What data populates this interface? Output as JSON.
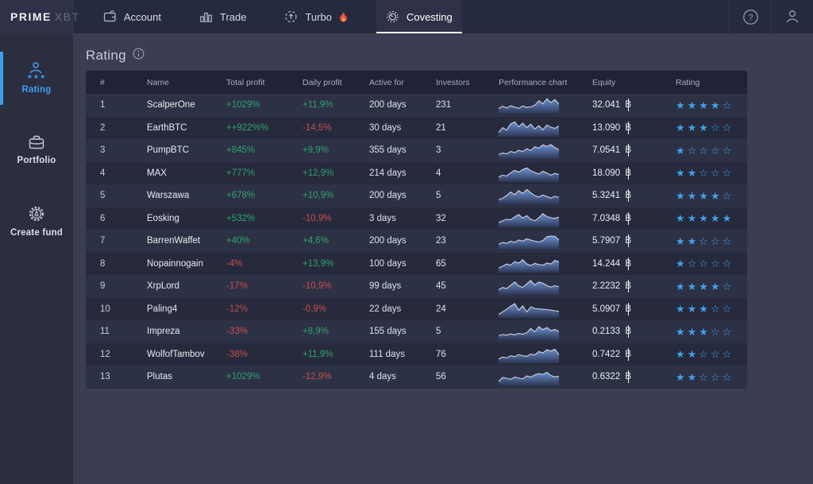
{
  "topbar": {
    "logo": {
      "brand": "PRIME",
      "suffix": "XBT"
    },
    "tabs": [
      {
        "label": "Account",
        "active": false
      },
      {
        "label": "Trade",
        "active": false
      },
      {
        "label": "Turbo",
        "badge": "🔥",
        "active": false
      },
      {
        "label": "Covesting",
        "active": true
      }
    ]
  },
  "sidebar": {
    "items": [
      {
        "label": "Rating",
        "active": true
      },
      {
        "label": "Portfolio",
        "active": false
      },
      {
        "label": "Create fund",
        "active": false
      }
    ]
  },
  "page": {
    "title": "Rating"
  },
  "table": {
    "currency": "฿",
    "rating_max": 5,
    "columns": [
      "#",
      "Name",
      "Total profit",
      "Daily profit",
      "Active for",
      "Investors",
      "Performance chart",
      "Equity",
      "Rating"
    ],
    "rows": [
      {
        "rank": "1",
        "name": "ScalperOne",
        "total_profit": "+1029%",
        "daily_profit": "+11,9%",
        "active_for": "200 days",
        "investors": "231",
        "equity": "32.041",
        "rating": 4,
        "spark": [
          28,
          44,
          32,
          47,
          38,
          30,
          45,
          36,
          40,
          50,
          80,
          60,
          93,
          68,
          88,
          58
        ]
      },
      {
        "rank": "2",
        "name": "EarthBTC",
        "total_profit": "++922%%",
        "daily_profit": "-14,5%",
        "active_for": "30 days",
        "investors": "21",
        "equity": "13.090",
        "rating": 3,
        "spark": [
          22,
          55,
          38,
          80,
          93,
          60,
          85,
          55,
          78,
          45,
          68,
          40,
          72,
          58,
          50,
          66
        ]
      },
      {
        "rank": "3",
        "name": "PumpBTC",
        "total_profit": "+845%",
        "daily_profit": "+9,9%",
        "active_for": "355 days",
        "investors": "3",
        "equity": "7.0541",
        "rating": 1,
        "spark": [
          24,
          34,
          28,
          44,
          36,
          52,
          44,
          62,
          50,
          76,
          66,
          88,
          78,
          90,
          70,
          56
        ]
      },
      {
        "rank": "4",
        "name": "MAX",
        "total_profit": "+777%",
        "daily_profit": "+12,9%",
        "active_for": "214 days",
        "investors": "4",
        "equity": "18.090",
        "rating": 2,
        "spark": [
          28,
          40,
          34,
          56,
          72,
          60,
          78,
          88,
          70,
          58,
          48,
          66,
          54,
          40,
          52,
          44
        ]
      },
      {
        "rank": "5",
        "name": "Warszawa",
        "total_profit": "+678%",
        "daily_profit": "+10,9%",
        "active_for": "200 days",
        "investors": "5",
        "equity": "5.3241",
        "rating": 4,
        "spark": [
          24,
          34,
          52,
          76,
          58,
          86,
          66,
          92,
          70,
          52,
          42,
          56,
          46,
          36,
          48,
          40
        ]
      },
      {
        "rank": "6",
        "name": "Eosking",
        "total_profit": "+532%",
        "daily_profit": "-10,9%",
        "active_for": "3 days",
        "investors": "32",
        "equity": "7.0348",
        "rating": 5,
        "spark": [
          26,
          38,
          48,
          44,
          64,
          80,
          56,
          72,
          48,
          38,
          58,
          86,
          66,
          58,
          54,
          62
        ]
      },
      {
        "rank": "7",
        "name": "BarrenWaffet",
        "total_profit": "+40%",
        "daily_profit": "+4,6%",
        "active_for": "200 days",
        "investors": "23",
        "equity": "5.7907",
        "rating": 2,
        "spark": [
          30,
          42,
          36,
          50,
          42,
          58,
          50,
          66,
          58,
          50,
          44,
          54,
          80,
          84,
          82,
          58
        ]
      },
      {
        "rank": "8",
        "name": "Nopainnogain",
        "total_profit": "-4%",
        "daily_profit": "+13,9%",
        "active_for": "100 days",
        "investors": "65",
        "equity": "14.244",
        "rating": 1,
        "spark": [
          24,
          38,
          52,
          44,
          68,
          58,
          80,
          52,
          42,
          56,
          48,
          44,
          58,
          52,
          76,
          66
        ]
      },
      {
        "rank": "9",
        "name": "XrpLord",
        "total_profit": "-17%",
        "daily_profit": "-10,9%",
        "active_for": "99 days",
        "investors": "45",
        "equity": "2.2232",
        "rating": 4,
        "spark": [
          28,
          44,
          36,
          58,
          80,
          54,
          44,
          68,
          90,
          60,
          80,
          72,
          56,
          46,
          56,
          48
        ]
      },
      {
        "rank": "10",
        "name": "Paling4",
        "total_profit": "-12%",
        "daily_profit": "-0,9%",
        "active_for": "22 days",
        "investors": "24",
        "equity": "5.0907",
        "rating": 3,
        "spark": [
          18,
          34,
          52,
          72,
          90,
          46,
          74,
          34,
          68,
          58,
          54,
          52,
          50,
          46,
          42,
          38
        ]
      },
      {
        "rank": "11",
        "name": "Impreza",
        "total_profit": "-33%",
        "daily_profit": "+8,9%",
        "active_for": "155 days",
        "investors": "5",
        "equity": "0.2133",
        "rating": 3,
        "spark": [
          24,
          32,
          28,
          36,
          30,
          40,
          34,
          44,
          72,
          50,
          84,
          64,
          78,
          58,
          66,
          52
        ]
      },
      {
        "rank": "12",
        "name": "WolfofTambov",
        "total_profit": "-38%",
        "daily_profit": "+11,9%",
        "active_for": "111 days",
        "investors": "76",
        "equity": "0.7422",
        "rating": 2,
        "spark": [
          22,
          36,
          30,
          44,
          38,
          52,
          44,
          40,
          56,
          50,
          72,
          62,
          84,
          76,
          88,
          52
        ]
      },
      {
        "rank": "13",
        "name": "Plutas",
        "total_profit": "+1029%",
        "daily_profit": "-12,9%",
        "active_for": "4 days",
        "investors": "56",
        "equity": "0.6322",
        "rating": 2,
        "spark": [
          20,
          48,
          42,
          36,
          50,
          44,
          38,
          58,
          50,
          64,
          74,
          68,
          82,
          60,
          52,
          56
        ]
      }
    ]
  },
  "colors": {
    "accent_blue": "#3e9ff0",
    "star_blue": "#42a0ea",
    "positive_green": "#2fa36f",
    "negative_red": "#c7504e",
    "active_tab_underline": "#ffffff",
    "spark_fill_top": "#6c92cf",
    "spark_fill_bottom": "#2c3554"
  }
}
